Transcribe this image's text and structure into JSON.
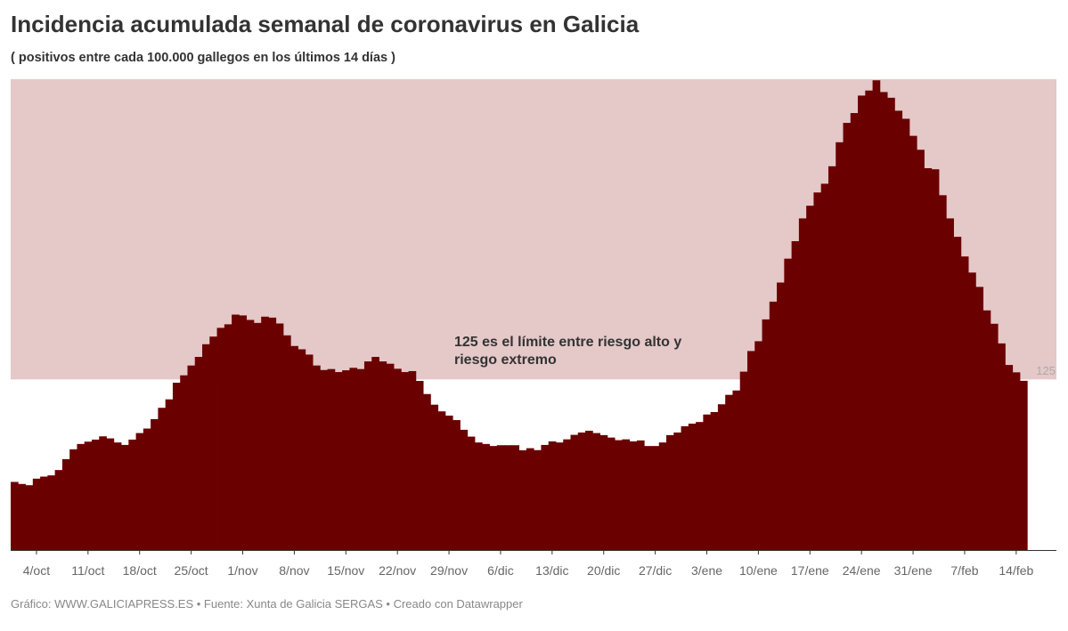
{
  "header": {
    "title": "Incidencia acumulada semanal de coronavirus en Galicia",
    "subtitle": "( positivos entre cada 100.000 gallegos en los últimos 14 días )"
  },
  "footer": "Gráfico: WWW.GALICIAPRESS.ES • Fuente: Xunta de Galicia SERGAS • Creado con Datawrapper",
  "chart_data": {
    "type": "bar",
    "title": "Incidencia acumulada semanal de coronavirus en Galicia",
    "subtitle": "( positivos entre cada 100.000 gallegos en los últimos 14 días )",
    "xlabel": "",
    "ylabel": "",
    "ylim": [
      0,
      345
    ],
    "grid": false,
    "bar_color": "#6b0000",
    "reference_band": {
      "from": 125,
      "to": 345,
      "color": "#e5c8c8",
      "label": "125"
    },
    "annotation": {
      "line1": "125 es el límite entre riesgo alto y",
      "line2": "riesgo extremo"
    },
    "tick_labels": [
      "4/oct",
      "11/oct",
      "18/oct",
      "25/oct",
      "1/nov",
      "8/nov",
      "15/nov",
      "22/nov",
      "29/nov",
      "6/dic",
      "13/dic",
      "20/dic",
      "27/dic",
      "3/ene",
      "10/ene",
      "17/ene",
      "24/ene",
      "31/ene",
      "7/feb",
      "14/feb"
    ],
    "categories": [
      "1/oct",
      "2/oct",
      "3/oct",
      "4/oct",
      "5/oct",
      "6/oct",
      "7/oct",
      "8/oct",
      "9/oct",
      "10/oct",
      "11/oct",
      "12/oct",
      "13/oct",
      "14/oct",
      "15/oct",
      "16/oct",
      "17/oct",
      "18/oct",
      "19/oct",
      "20/oct",
      "21/oct",
      "22/oct",
      "23/oct",
      "24/oct",
      "25/oct",
      "26/oct",
      "27/oct",
      "28/oct",
      "29/oct",
      "30/oct",
      "31/oct",
      "1/nov",
      "2/nov",
      "3/nov",
      "4/nov",
      "5/nov",
      "6/nov",
      "7/nov",
      "8/nov",
      "9/nov",
      "10/nov",
      "11/nov",
      "12/nov",
      "13/nov",
      "14/nov",
      "15/nov",
      "16/nov",
      "17/nov",
      "18/nov",
      "19/nov",
      "20/nov",
      "21/nov",
      "22/nov",
      "23/nov",
      "24/nov",
      "25/nov",
      "26/nov",
      "27/nov",
      "28/nov",
      "29/nov",
      "30/nov",
      "1/dic",
      "2/dic",
      "3/dic",
      "4/dic",
      "5/dic",
      "6/dic",
      "7/dic",
      "8/dic",
      "9/dic",
      "10/dic",
      "11/dic",
      "12/dic",
      "13/dic",
      "14/dic",
      "15/dic",
      "16/dic",
      "17/dic",
      "18/dic",
      "19/dic",
      "20/dic",
      "21/dic",
      "22/dic",
      "23/dic",
      "24/dic",
      "25/dic",
      "26/dic",
      "27/dic",
      "28/dic",
      "29/dic",
      "30/dic",
      "31/dic",
      "1/ene",
      "2/ene",
      "3/ene",
      "4/ene",
      "5/ene",
      "6/ene",
      "7/ene",
      "8/ene",
      "9/ene",
      "10/ene",
      "11/ene",
      "12/ene",
      "13/ene",
      "14/ene",
      "15/ene",
      "16/ene",
      "17/ene",
      "18/ene",
      "19/ene",
      "20/ene",
      "21/ene",
      "22/ene",
      "23/ene",
      "24/ene",
      "25/ene",
      "26/ene",
      "27/ene",
      "28/ene",
      "29/ene",
      "30/ene",
      "31/ene",
      "1/feb",
      "2/feb",
      "3/feb",
      "4/feb",
      "5/feb",
      "6/feb",
      "7/feb",
      "8/feb",
      "9/feb",
      "10/feb",
      "11/feb",
      "12/feb",
      "13/feb",
      "14/feb",
      "15/feb"
    ],
    "values": [
      49.9,
      48.4,
      47.5,
      52.3,
      53.8,
      54.7,
      58.6,
      66.6,
      73.8,
      77.7,
      79.4,
      80.9,
      83.3,
      81.8,
      78.8,
      77,
      80.9,
      85.7,
      89,
      95.9,
      104.2,
      110.4,
      122.6,
      128,
      135.2,
      141.5,
      150.8,
      156.4,
      162.8,
      165.4,
      172.5,
      171.9,
      168.6,
      166.4,
      171,
      170.3,
      166,
      157.3,
      149.5,
      147.1,
      143.2,
      135.2,
      131.9,
      132.6,
      130.4,
      131.7,
      133.5,
      132.6,
      138.2,
      141.5,
      138.2,
      136.5,
      132.8,
      130.4,
      131.1,
      123.9,
      114.3,
      106.5,
      101.6,
      98.5,
      95.2,
      88.1,
      83.1,
      78.8,
      77.7,
      76.2,
      76.8,
      76.8,
      76.8,
      73.1,
      74.6,
      73.2,
      77,
      79.6,
      78.8,
      81.1,
      84.4,
      86.1,
      87.4,
      85.7,
      84.2,
      82.4,
      80.5,
      81.1,
      79.6,
      80.3,
      76.2,
      76.2,
      78.8,
      84.2,
      86.1,
      90.7,
      92.6,
      93.8,
      99.3,
      101.1,
      106.8,
      113.7,
      116.9,
      130.7,
      145.8,
      153,
      169,
      182,
      196,
      213.5,
      226.3,
      243,
      252.3,
      262,
      268.4,
      281.2,
      298.8,
      313,
      320.2,
      333,
      336.7,
      344.2,
      335.6,
      331.4,
      321.9,
      316,
      303.5,
      293.3,
      279.8,
      279,
      260,
      243,
      229.5,
      215.1,
      203.3,
      192.8,
      175.6,
      165.8,
      151.4,
      135.6,
      130.2,
      124
    ]
  }
}
